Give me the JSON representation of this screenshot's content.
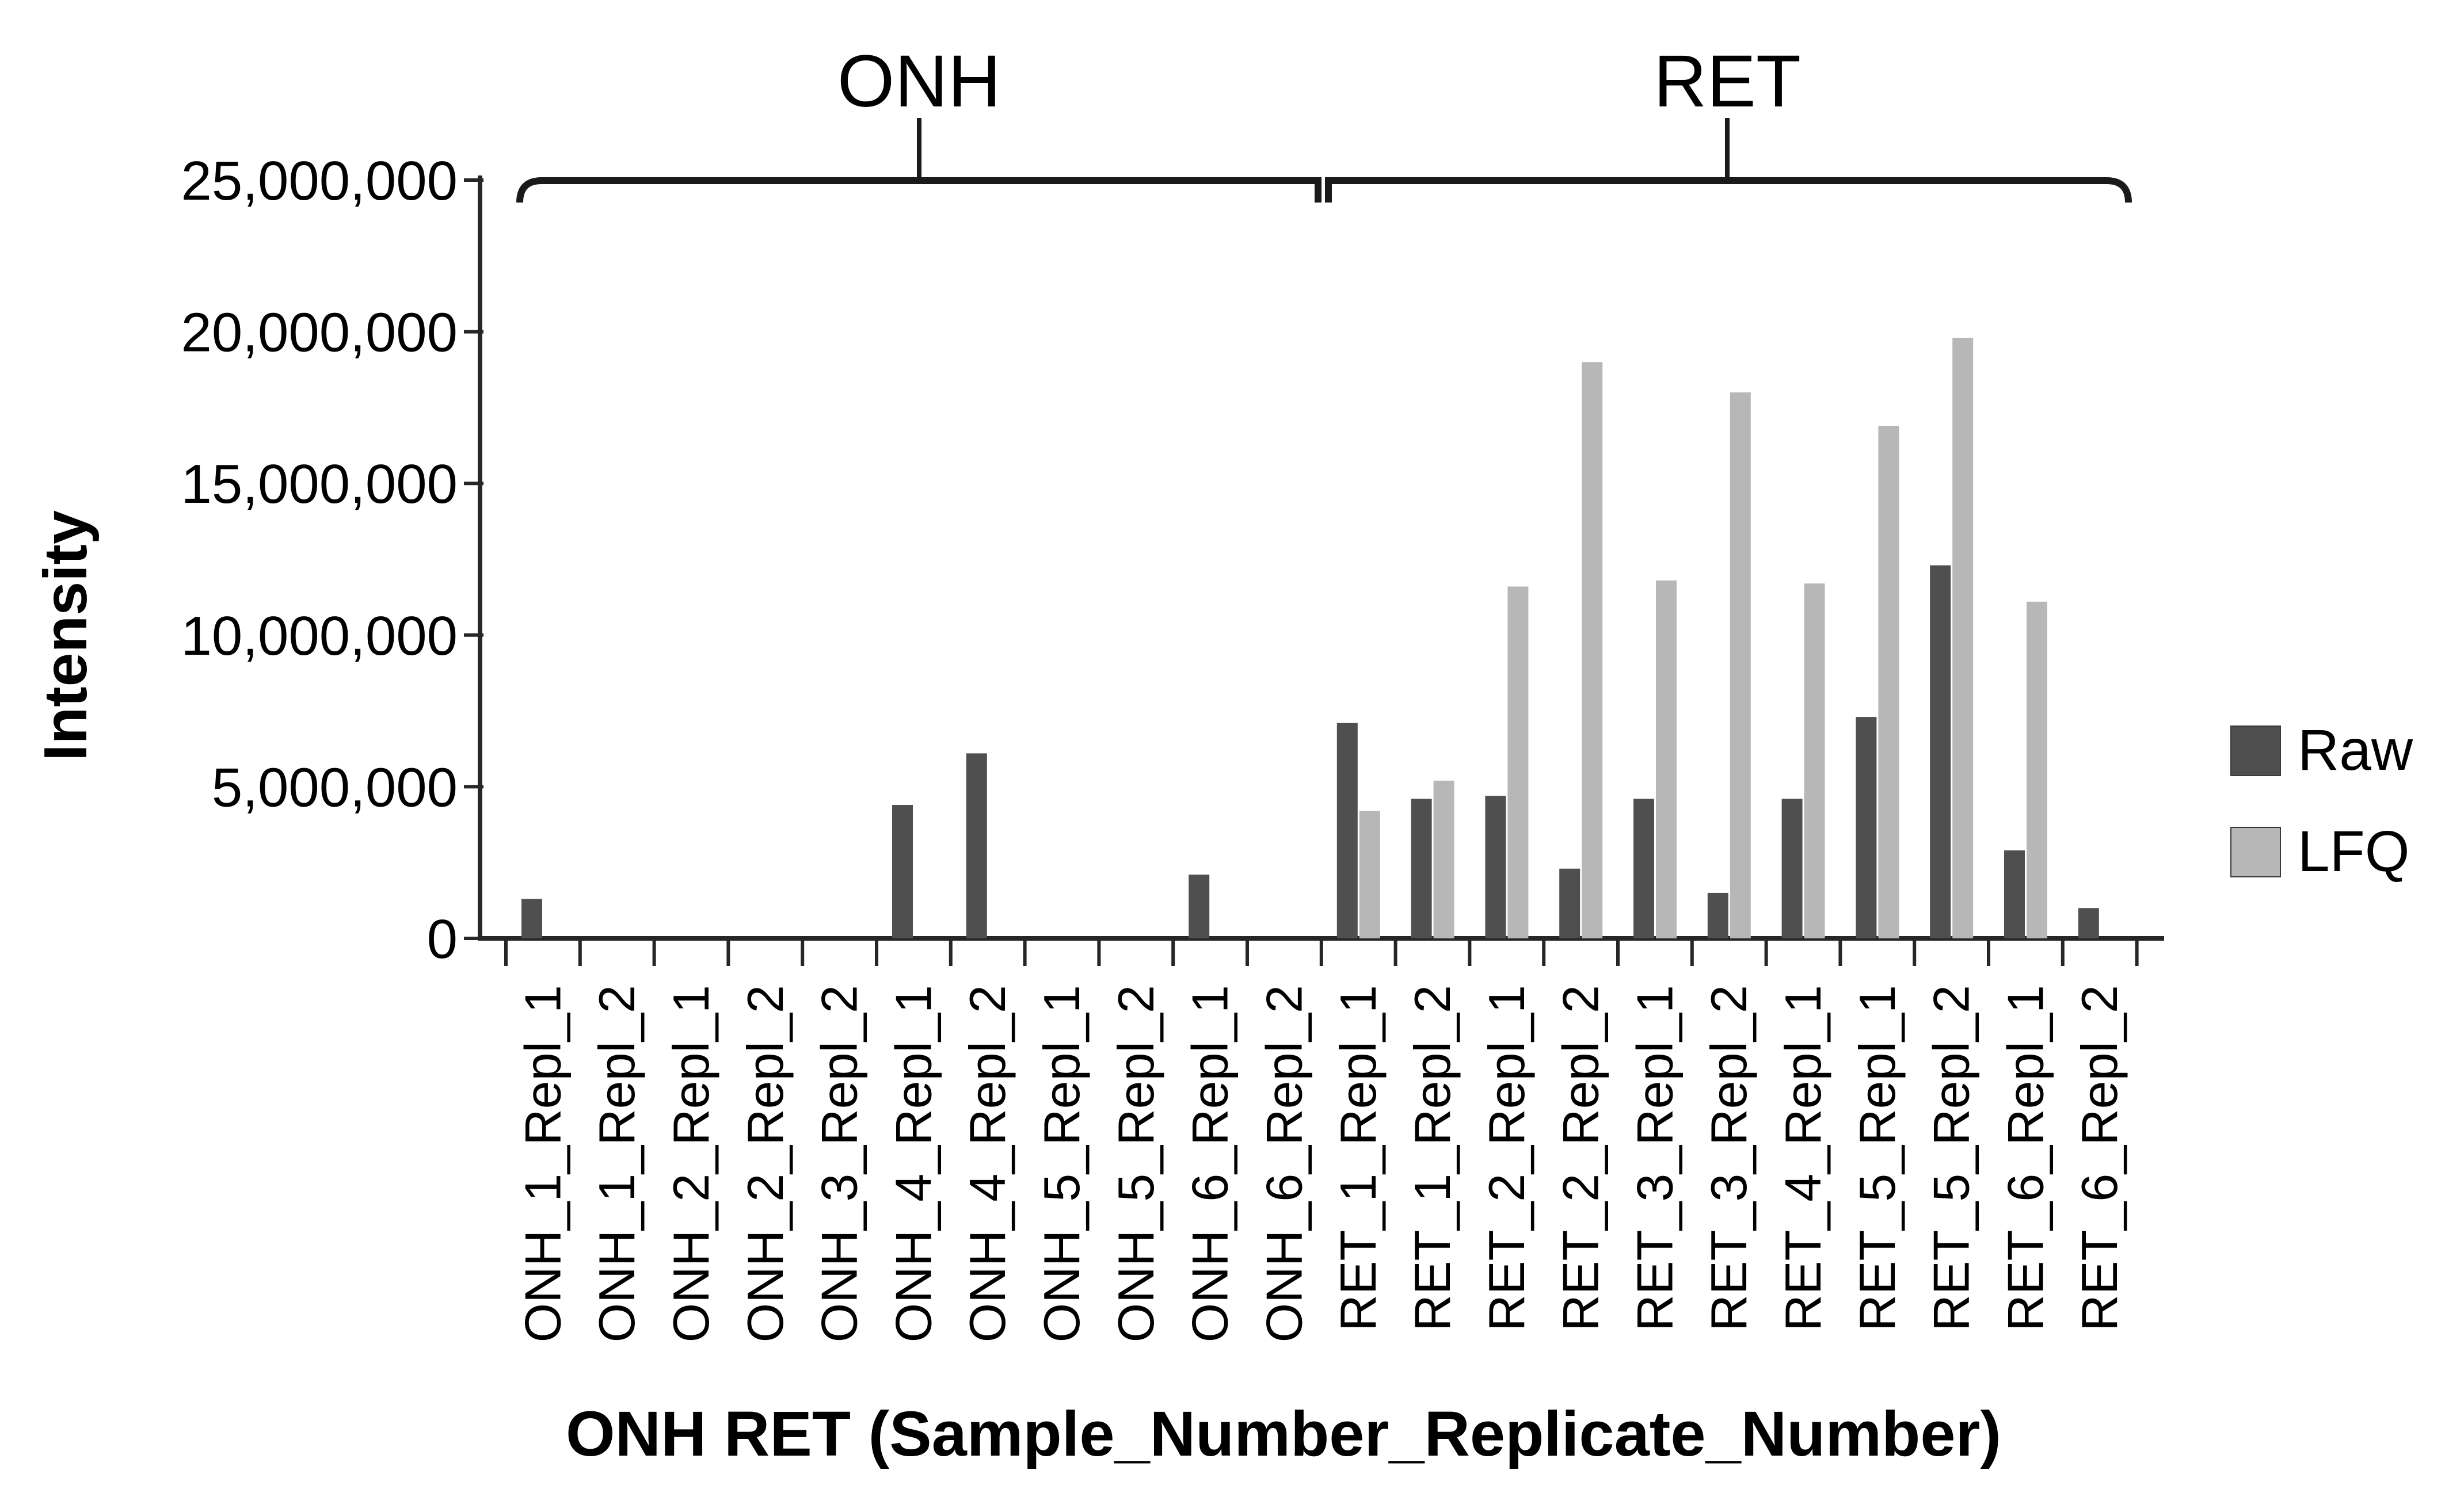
{
  "figure": {
    "y_axis_title": "Intensity",
    "x_axis_title": "ONH RET (Sample_Number_Replicate_Number)"
  },
  "chart_data": {
    "type": "bar",
    "title": "",
    "xlabel": "ONH RET (Sample_Number_Replicate_Number)",
    "ylabel": "Intensity",
    "ylim": [
      0,
      25000000
    ],
    "ytick_interval": 5000000,
    "ytick_labels": [
      "0",
      "5,000,000",
      "10,000,000",
      "15,000,000",
      "20,000,000",
      "25,000,000"
    ],
    "grid": false,
    "legend_position": "right",
    "categories": [
      "ONH_1_Repl_1",
      "ONH_1_Repl_2",
      "ONH_2_Repl_1",
      "ONH_2_Repl_2",
      "ONH_3_Repl_2",
      "ONH_4_Repl_1",
      "ONH_4_Repl_2",
      "ONH_5_Repl_1",
      "ONH_5_Repl_2",
      "ONH_6_Repl_1",
      "ONH_6_Repl_2",
      "RET_1_Repl_1",
      "RET_1_Repl_2",
      "RET_2_Repl_1",
      "RET_2_Repl_2",
      "RET_3_Repl_1",
      "RET_3_Repl_2",
      "RET_4_Repl_1",
      "RET_5_Repl_1",
      "RET_5_Repl_2",
      "RET_6_Repl_1",
      "RET_6_Repl_2"
    ],
    "series": [
      {
        "name": "Raw",
        "color": "#4f4f4f",
        "values": [
          1300000,
          0,
          0,
          0,
          0,
          4400000,
          6100000,
          0,
          0,
          2100000,
          0,
          7100000,
          4600000,
          4700000,
          2300000,
          4600000,
          1500000,
          4600000,
          7300000,
          12300000,
          2900000,
          1000000
        ]
      },
      {
        "name": "LFQ",
        "color": "#b7b7b7",
        "values": [
          0,
          0,
          0,
          0,
          0,
          0,
          0,
          0,
          0,
          0,
          0,
          4200000,
          5200000,
          11600000,
          19000000,
          11800000,
          18000000,
          11700000,
          16900000,
          19800000,
          11100000,
          0
        ]
      }
    ],
    "groups": [
      {
        "label": "ONH",
        "start": 0,
        "end": 10
      },
      {
        "label": "RET",
        "start": 11,
        "end": 21
      }
    ]
  }
}
